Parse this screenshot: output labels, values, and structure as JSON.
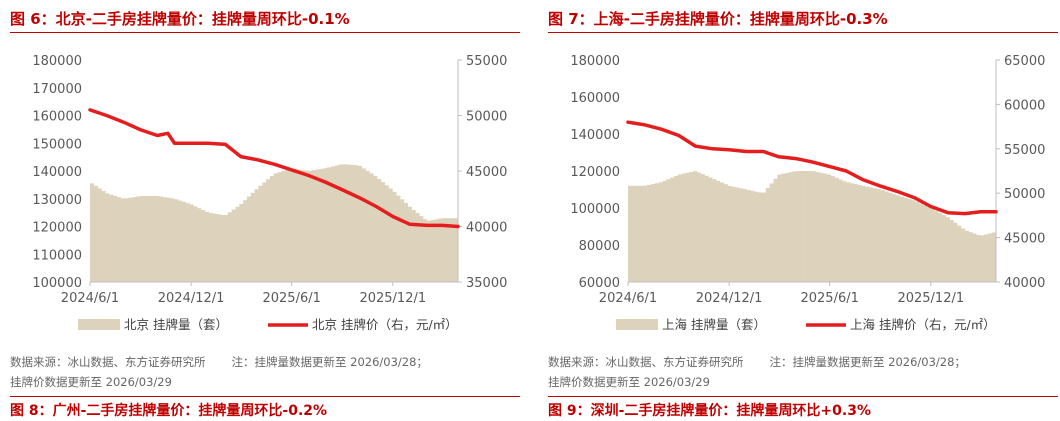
{
  "panels": [
    {
      "title": "图 6：北京-二手房挂牌量价：挂牌量周环比-0.1%",
      "source_line1": "数据来源：冰山数据、东方证券研究所",
      "source_note": "注：挂牌量数据更新至 2026/03/28；",
      "source_line2": "挂牌价数据更新至 2026/03/29",
      "next_title": "图 8：广州-二手房挂牌量价：挂牌量周环比-0.2%"
    },
    {
      "title": "图 7：上海-二手房挂牌量价：挂牌量周环比-0.3%",
      "source_line1": "数据来源：冰山数据、东方证券研究所",
      "source_note": "注：挂牌量数据更新至 2026/03/28；",
      "source_line2": "挂牌价数据更新至 2026/03/29",
      "next_title": "图 9：深圳-二手房挂牌量价：挂牌量周环比+0.3%"
    }
  ],
  "chart_data": [
    {
      "type": "area+line",
      "x_ticks": [
        "2024/6/1",
        "2024/12/1",
        "2025/6/1",
        "2025/12/1"
      ],
      "x_range": [
        "2024/6/1",
        "2026/3/29"
      ],
      "y_left": {
        "ticks": [
          100000,
          110000,
          120000,
          130000,
          140000,
          150000,
          160000,
          170000,
          180000
        ],
        "range": [
          100000,
          180000
        ]
      },
      "y_right": {
        "ticks": [
          35000,
          40000,
          45000,
          50000,
          55000
        ],
        "range": [
          35000,
          55000
        ]
      },
      "series": [
        {
          "name": "北京 挂牌量（套）",
          "type": "area",
          "axis": "left",
          "color": "#ddd3bc",
          "x": [
            "2024/6/1",
            "2024/7/1",
            "2024/8/1",
            "2024/9/1",
            "2024/10/1",
            "2024/11/1",
            "2024/12/1",
            "2025/1/1",
            "2025/2/1",
            "2025/3/1",
            "2025/4/1",
            "2025/5/1",
            "2025/6/1",
            "2025/7/1",
            "2025/8/1",
            "2025/9/1",
            "2025/10/1",
            "2025/11/1",
            "2025/12/1",
            "2026/1/1",
            "2026/2/1",
            "2026/3/1",
            "2026/3/28"
          ],
          "values": [
            136000,
            132000,
            130000,
            131000,
            131000,
            130000,
            128000,
            125000,
            124000,
            128000,
            134000,
            139000,
            141000,
            140000,
            141000,
            142500,
            142000,
            138000,
            133000,
            127000,
            122000,
            123000,
            123000
          ]
        },
        {
          "name": "北京 挂牌价（右，元/㎡）",
          "type": "line",
          "axis": "right",
          "color": "#e41e1e",
          "x": [
            "2024/6/1",
            "2024/7/1",
            "2024/8/1",
            "2024/9/1",
            "2024/10/1",
            "2024/10/20",
            "2024/11/1",
            "2024/12/1",
            "2025/1/1",
            "2025/2/1",
            "2025/3/1",
            "2025/4/1",
            "2025/5/1",
            "2025/6/1",
            "2025/7/1",
            "2025/8/1",
            "2025/9/1",
            "2025/10/1",
            "2025/11/1",
            "2025/12/1",
            "2026/1/1",
            "2026/2/1",
            "2026/3/1",
            "2026/3/29"
          ],
          "values": [
            50500,
            50000,
            49400,
            48700,
            48200,
            48400,
            47500,
            47500,
            47500,
            47400,
            46300,
            46000,
            45600,
            45100,
            44600,
            44000,
            43300,
            42600,
            41800,
            40900,
            40200,
            40100,
            40100,
            40000
          ]
        }
      ]
    },
    {
      "type": "area+line",
      "x_ticks": [
        "2024/6/1",
        "2024/12/1",
        "2025/6/1",
        "2025/12/1"
      ],
      "x_range": [
        "2024/6/1",
        "2026/3/29"
      ],
      "y_left": {
        "ticks": [
          60000,
          80000,
          100000,
          120000,
          140000,
          160000,
          180000
        ],
        "range": [
          60000,
          180000
        ]
      },
      "y_right": {
        "ticks": [
          40000,
          45000,
          50000,
          55000,
          60000,
          65000
        ],
        "range": [
          40000,
          65000
        ]
      },
      "series": [
        {
          "name": "上海 挂牌量（套）",
          "type": "area",
          "axis": "left",
          "color": "#ddd3bc",
          "x": [
            "2024/6/1",
            "2024/7/1",
            "2024/8/1",
            "2024/9/1",
            "2024/10/1",
            "2024/11/1",
            "2024/12/1",
            "2025/1/1",
            "2025/2/1",
            "2025/3/1",
            "2025/4/1",
            "2025/5/1",
            "2025/6/1",
            "2025/7/1",
            "2025/8/1",
            "2025/9/1",
            "2025/10/1",
            "2025/11/1",
            "2025/12/1",
            "2026/1/1",
            "2026/2/1",
            "2026/3/1",
            "2026/3/28"
          ],
          "values": [
            112000,
            112000,
            114000,
            118000,
            120000,
            116000,
            112000,
            110000,
            108000,
            118000,
            120000,
            120000,
            118000,
            114000,
            112000,
            110000,
            107000,
            104000,
            100000,
            95000,
            88000,
            85000,
            87000
          ]
        },
        {
          "name": "上海 挂牌价（右，元/㎡）",
          "type": "line",
          "axis": "right",
          "color": "#e41e1e",
          "x": [
            "2024/6/1",
            "2024/7/1",
            "2024/8/1",
            "2024/9/1",
            "2024/10/1",
            "2024/11/1",
            "2024/12/1",
            "2025/1/1",
            "2025/2/1",
            "2025/3/1",
            "2025/4/1",
            "2025/5/1",
            "2025/6/1",
            "2025/7/1",
            "2025/8/1",
            "2025/9/1",
            "2025/10/1",
            "2025/11/1",
            "2025/12/1",
            "2026/1/1",
            "2026/2/1",
            "2026/3/1",
            "2026/3/29"
          ],
          "values": [
            58000,
            57700,
            57200,
            56500,
            55300,
            55000,
            54900,
            54700,
            54700,
            54100,
            53900,
            53500,
            53000,
            52500,
            51500,
            50800,
            50200,
            49500,
            48500,
            47800,
            47700,
            47900,
            47900
          ]
        }
      ]
    }
  ]
}
